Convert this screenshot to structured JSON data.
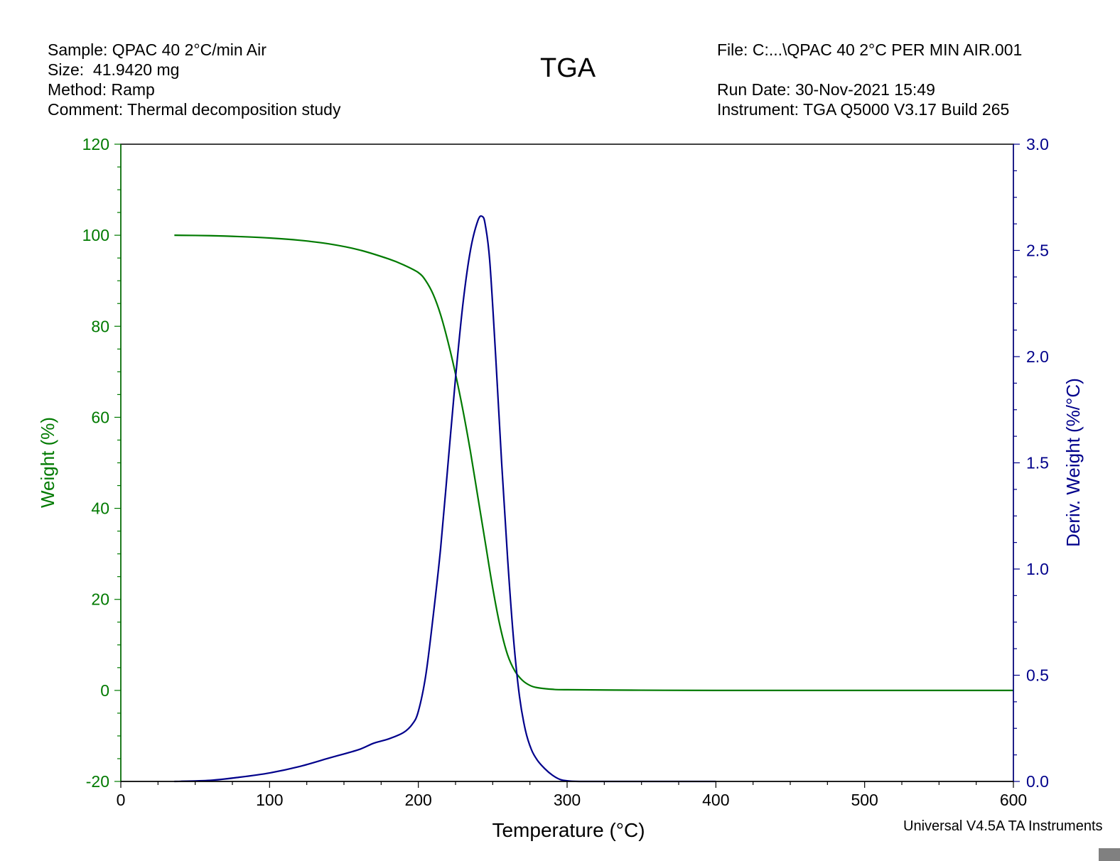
{
  "header": {
    "left_lines": [
      "Sample: QPAC 40 2°C/min Air",
      "Size:  41.9420 mg",
      "Method: Ramp",
      "Comment: Thermal decomposition study"
    ],
    "right_lines": [
      "File: C:...\\QPAC 40 2°C PER MIN AIR.001",
      "",
      "Run Date: 30-Nov-2021 15:49",
      "Instrument: TGA Q5000 V3.17 Build 265"
    ]
  },
  "footer": {
    "credit": "Universal V4.5A TA Instruments"
  },
  "chart_data": {
    "type": "line",
    "title": "TGA",
    "xlabel": "Temperature (°C)",
    "ylabel_left": "Weight (%)",
    "ylabel_right": "Deriv. Weight (%/°C)",
    "xlim": [
      0,
      600
    ],
    "ylim_left": [
      -20,
      120
    ],
    "ylim_right": [
      0,
      3
    ],
    "x_ticks": [
      "0",
      "100",
      "200",
      "300",
      "400",
      "500",
      "600"
    ],
    "y_left_ticks": [
      "-20",
      "0",
      "20",
      "40",
      "60",
      "80",
      "100",
      "120"
    ],
    "y_right_ticks": [
      "0.0",
      "0.5",
      "1.0",
      "1.5",
      "2.0",
      "2.5",
      "3.0"
    ],
    "grid": false,
    "colors": {
      "weight": "#007a00",
      "deriv": "#00008b",
      "frame": "#000000"
    },
    "series": [
      {
        "axis": "left",
        "color": "#007a00",
        "x": [
          36,
          60,
          80,
          100,
          120,
          140,
          160,
          180,
          190,
          200,
          205,
          210,
          215,
          220,
          225,
          230,
          235,
          240,
          245,
          250,
          255,
          260,
          265,
          270,
          275,
          280,
          290,
          300,
          350,
          400,
          500,
          600
        ],
        "y": [
          100,
          99.9,
          99.7,
          99.4,
          98.9,
          98.1,
          96.8,
          94.8,
          93.5,
          91.8,
          90.0,
          87.0,
          82.5,
          76.5,
          69.5,
          61.5,
          52.5,
          42.5,
          32.5,
          22.5,
          14.0,
          7.8,
          4.2,
          2.2,
          1.1,
          0.6,
          0.25,
          0.15,
          0.05,
          0.0,
          0.0,
          0.0
        ]
      },
      {
        "axis": "right",
        "color": "#00008b",
        "x": [
          36,
          60,
          80,
          100,
          120,
          140,
          160,
          170,
          180,
          190,
          196,
          200,
          205,
          210,
          215,
          220,
          225,
          230,
          235,
          240,
          243,
          245,
          248,
          252,
          256,
          260,
          264,
          268,
          272,
          276,
          280,
          285,
          290,
          295,
          300,
          310,
          350,
          400
        ],
        "y": [
          0.0,
          0.005,
          0.02,
          0.04,
          0.07,
          0.11,
          0.15,
          0.18,
          0.2,
          0.23,
          0.27,
          0.33,
          0.5,
          0.78,
          1.1,
          1.5,
          1.9,
          2.25,
          2.5,
          2.64,
          2.66,
          2.62,
          2.45,
          2.0,
          1.5,
          1.05,
          0.67,
          0.4,
          0.24,
          0.15,
          0.1,
          0.06,
          0.03,
          0.01,
          0.003,
          0.0,
          0.0,
          0.0
        ]
      }
    ]
  }
}
